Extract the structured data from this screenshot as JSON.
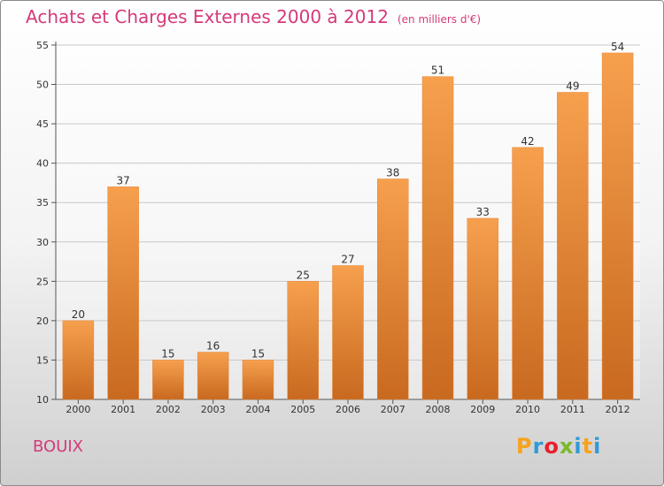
{
  "title": "Achats et Charges Externes 2000 à 2012",
  "subtitle": "(en milliers d'€)",
  "commune": "BOUIX",
  "logo": {
    "letters": [
      "P",
      "r",
      "o",
      "x",
      "i",
      "t",
      "i"
    ],
    "colors": [
      "#f7a21c",
      "#2f9bd6",
      "#e8202a",
      "#7ab929",
      "#2f9bd6",
      "#f7a21c",
      "#2f9bd6"
    ]
  },
  "chart_data": {
    "type": "bar",
    "categories": [
      "2000",
      "2001",
      "2002",
      "2003",
      "2004",
      "2005",
      "2006",
      "2007",
      "2008",
      "2009",
      "2010",
      "2011",
      "2012"
    ],
    "values": [
      20,
      37,
      15,
      16,
      15,
      25,
      27,
      38,
      51,
      33,
      42,
      49,
      54
    ],
    "ylim": [
      10,
      55
    ],
    "yticks": [
      10,
      15,
      20,
      25,
      30,
      35,
      40,
      45,
      50,
      55
    ],
    "grid": true,
    "bar_color_top": "#f6a04e",
    "bar_color_bottom": "#c8691f"
  }
}
